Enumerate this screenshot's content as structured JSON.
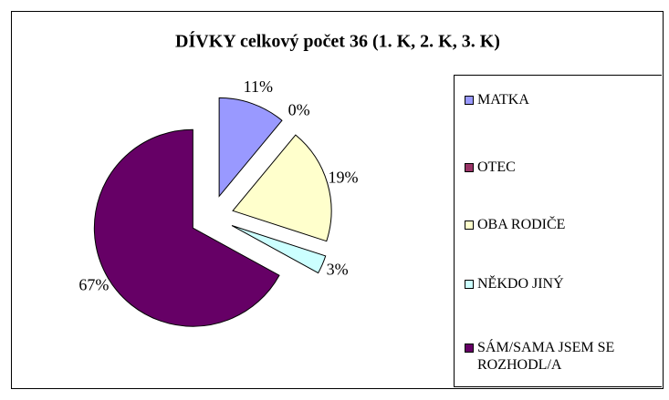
{
  "chart_data": {
    "type": "pie",
    "title": "DÍVKY celkový počet 36  (1. K, 2. K, 3. K)",
    "categories": [
      "MATKA",
      "OTEC",
      "OBA RODIČE",
      "NĚKDO JINÝ",
      "SÁM/SAMA JSEM SE ROZHODL/A"
    ],
    "values": [
      11,
      0,
      19,
      3,
      67
    ],
    "value_labels": [
      "11%",
      "0%",
      "19%",
      "3%",
      "67%"
    ],
    "colors": [
      "#9999ff",
      "#993366",
      "#ffffcc",
      "#ccffff",
      "#660066"
    ],
    "legend": "right"
  }
}
